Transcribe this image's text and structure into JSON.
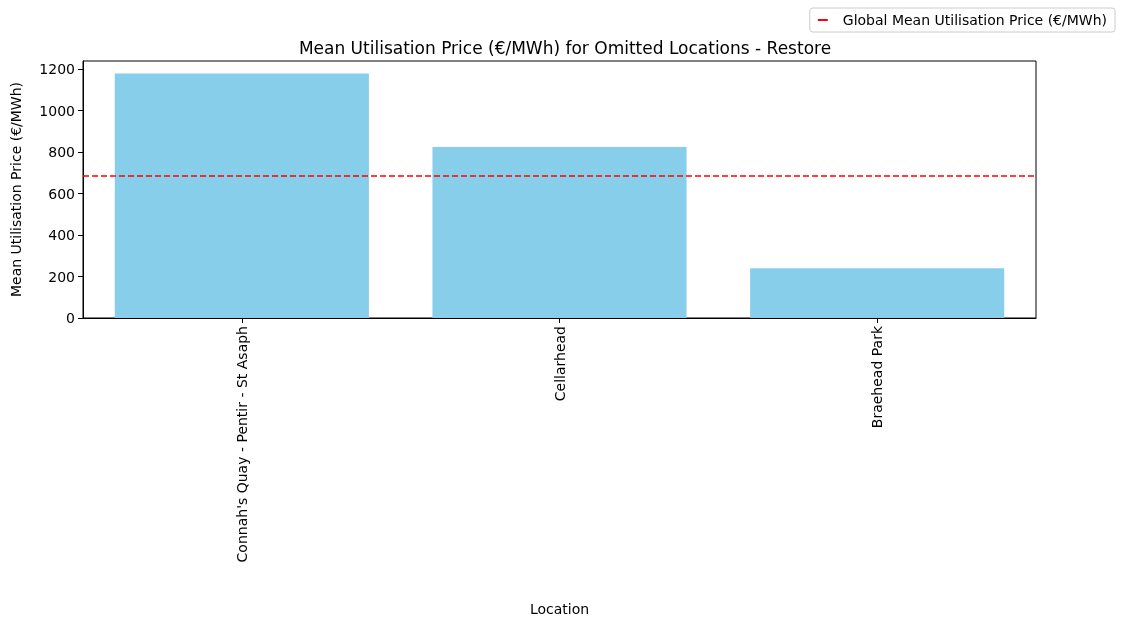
{
  "chart_data": {
    "type": "bar",
    "title": "Mean Utilisation Price (€/MWh) for Omitted Locations - Restore",
    "xlabel": "Location",
    "ylabel": "Mean Utilisation Price (€/MWh)",
    "categories": [
      "Connah's Quay - Pentir - St Asaph",
      "Cellarhead",
      "Braehead Park"
    ],
    "values": [
      1180,
      825,
      240
    ],
    "color": "#87ceeb",
    "ylim": [
      0,
      1240
    ],
    "yticks": [
      0,
      200,
      400,
      600,
      800,
      1000,
      1200
    ],
    "grid": false,
    "legend": "top right",
    "ref_lines": [
      {
        "axis": "y",
        "value": 685,
        "label": "Global Mean Utilisation Price (€/MWh)",
        "color": "#ff0000",
        "line_style": "dashed"
      }
    ]
  }
}
